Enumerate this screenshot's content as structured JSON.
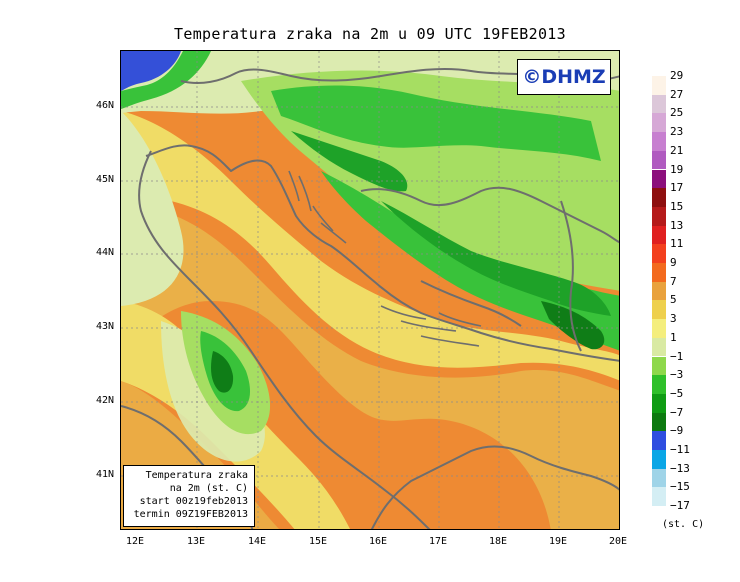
{
  "title": "Temperatura zraka na 2m u 09 UTC 19FEB2013",
  "credit": "©DHMZ",
  "info_box": {
    "line1": "Temperatura zraka",
    "line2": "na 2m (st. C)",
    "line3": "start 00z19feb2013",
    "line4": "termin 09Z19FEB2013"
  },
  "latitude_labels": [
    "46N",
    "45N",
    "44N",
    "43N",
    "42N",
    "41N"
  ],
  "longitude_labels": [
    "12E",
    "13E",
    "14E",
    "15E",
    "16E",
    "17E",
    "18E",
    "19E",
    "20E"
  ],
  "legend": {
    "unit": "(st. C)",
    "labels": [
      "29",
      "27",
      "25",
      "23",
      "21",
      "19",
      "17",
      "15",
      "13",
      "11",
      "9",
      "7",
      "5",
      "3",
      "1",
      "−1",
      "−3",
      "−5",
      "−7",
      "−9",
      "−11",
      "−13",
      "−15",
      "−17"
    ],
    "colors": [
      "#fdf3e7",
      "#dcc7d9",
      "#d6a8d6",
      "#c77fd0",
      "#b05bc0",
      "#8c0f7c",
      "#8e0f0f",
      "#b51a1a",
      "#e02020",
      "#f3401e",
      "#f36a1e",
      "#e9a23d",
      "#eed04d",
      "#f4ee7d",
      "#d9eaa3",
      "#8ed84b",
      "#2fc02a",
      "#0f9c14",
      "#0d7a10",
      "#2f4ee0",
      "#0aa6e6",
      "#9fd4e8",
      "#d4eef4",
      "#ffffff"
    ]
  },
  "map": {
    "region": "Adriatic Sea and surroundings",
    "field": "2m air temperature",
    "colors": {
      "warm_sea": "#ee8a33",
      "mild_sea": "#eab048",
      "coastal_mid": "#f0dc66",
      "lowland_pale": "#dcebb0",
      "cool_land": "#a6de62",
      "cold_land": "#39c23a",
      "colder_land": "#1ea228",
      "coldest_land": "#0f7d17",
      "very_cold": "#3450d8",
      "coastline": "#6e6e6e"
    }
  }
}
